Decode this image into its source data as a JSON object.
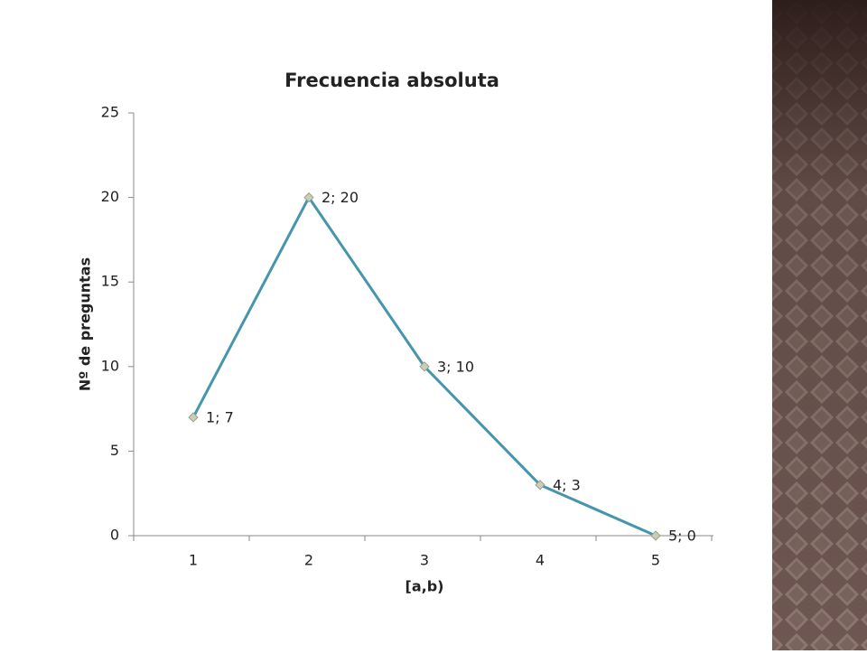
{
  "chart_data": {
    "type": "line",
    "title": "Frecuencia absoluta",
    "x_label": "[a,b)",
    "y_label": "Nº de preguntas",
    "categories": [
      "1",
      "2",
      "3",
      "4",
      "5"
    ],
    "values": [
      7,
      20,
      10,
      3,
      0
    ],
    "value_labels": [
      "1; 7",
      "2; 20",
      "3; 10",
      "4; 3",
      "5; 0"
    ],
    "color": "#4595ad",
    "marker_color": "#c8cfb4",
    "ylim": [
      0,
      25
    ],
    "yticks": [
      0,
      5,
      10,
      15,
      20,
      25
    ]
  }
}
